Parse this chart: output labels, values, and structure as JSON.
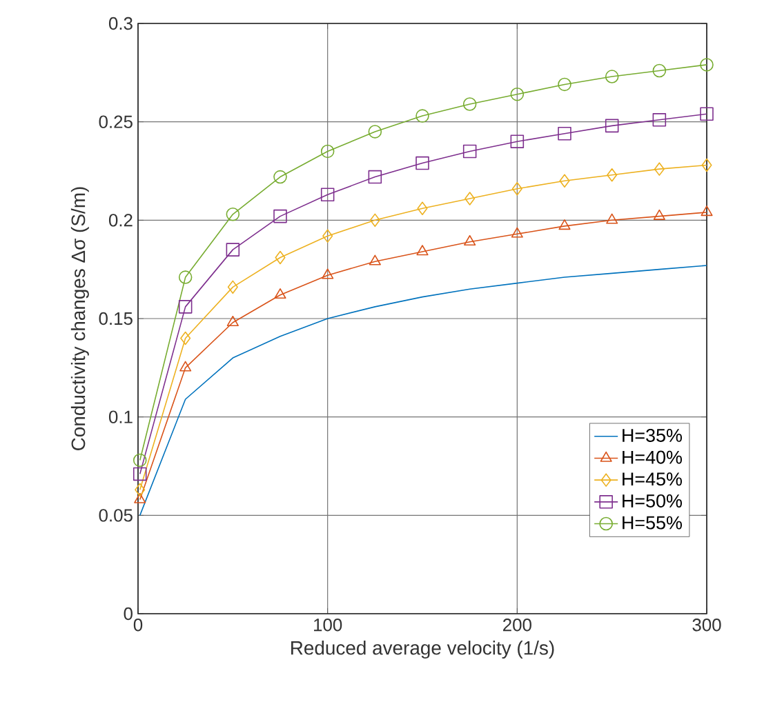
{
  "chart_data": {
    "type": "line",
    "xlabel": "Reduced average velocity (1/s)",
    "ylabel": "Conductivity changes Δσ (S/m)",
    "x": [
      1,
      25,
      50,
      75,
      100,
      125,
      150,
      175,
      200,
      225,
      250,
      275,
      300
    ],
    "xlim": [
      0,
      300
    ],
    "xticks": [
      0,
      100,
      200,
      300
    ],
    "ylim": [
      0,
      0.3
    ],
    "yticks": [
      0,
      0.05,
      0.1,
      0.15,
      0.2,
      0.25,
      0.3
    ],
    "grid": true,
    "legend": "bottom right",
    "series": [
      {
        "name": "H=35%",
        "color": "#0072bd",
        "marker": "none",
        "values": [
          0.05,
          0.109,
          0.13,
          0.141,
          0.15,
          0.156,
          0.161,
          0.165,
          0.168,
          0.171,
          0.173,
          0.175,
          0.177
        ]
      },
      {
        "name": "H=40%",
        "color": "#d95319",
        "marker": "triangle",
        "values": [
          0.058,
          0.125,
          0.148,
          0.162,
          0.172,
          0.179,
          0.184,
          0.189,
          0.193,
          0.197,
          0.2,
          0.202,
          0.204
        ]
      },
      {
        "name": "H=45%",
        "color": "#edb120",
        "marker": "diamond",
        "values": [
          0.063,
          0.14,
          0.166,
          0.181,
          0.192,
          0.2,
          0.206,
          0.211,
          0.216,
          0.22,
          0.223,
          0.226,
          0.228
        ]
      },
      {
        "name": "H=50%",
        "color": "#7e2f8e",
        "marker": "square",
        "values": [
          0.071,
          0.156,
          0.185,
          0.202,
          0.213,
          0.222,
          0.229,
          0.235,
          0.24,
          0.244,
          0.248,
          0.251,
          0.254
        ]
      },
      {
        "name": "H=55%",
        "color": "#77ac30",
        "marker": "circle",
        "values": [
          0.078,
          0.171,
          0.203,
          0.222,
          0.235,
          0.245,
          0.253,
          0.259,
          0.264,
          0.269,
          0.273,
          0.276,
          0.279
        ]
      }
    ]
  }
}
